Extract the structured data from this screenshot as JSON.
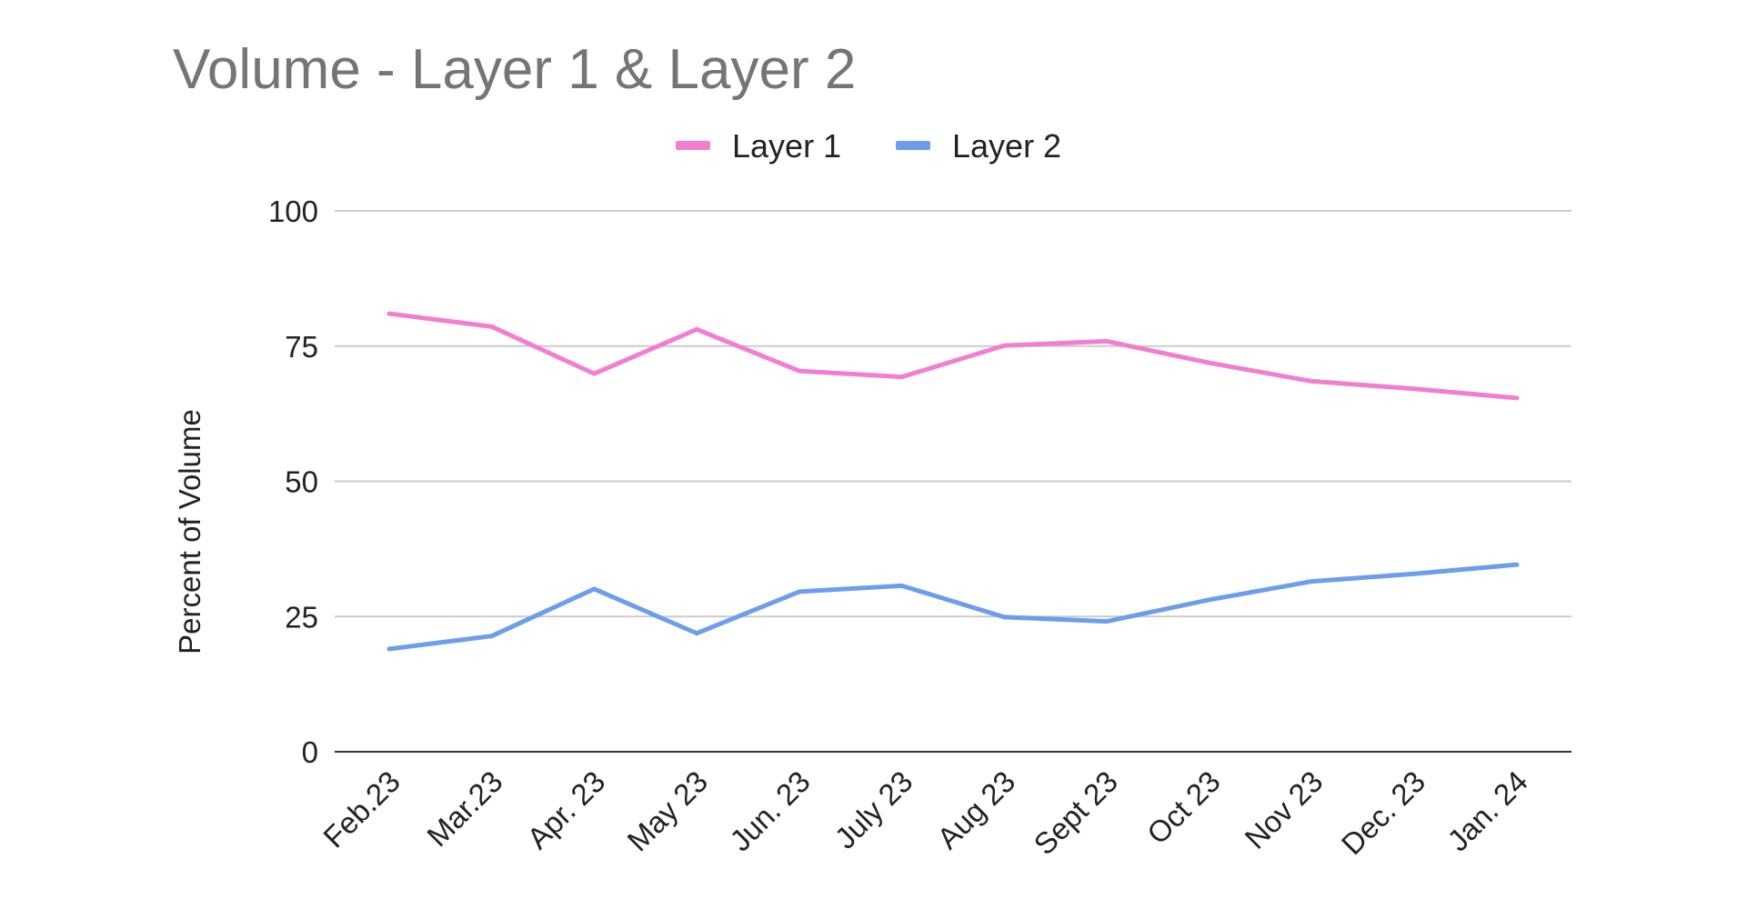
{
  "chart_data": {
    "type": "line",
    "title": "Volume - Layer 1 & Layer 2",
    "xlabel": "",
    "ylabel": "Percent of Volume",
    "categories": [
      "Feb.23",
      "Mar.23",
      "Apr. 23",
      "May 23",
      "Jun. 23",
      "July 23",
      "Aug 23",
      "Sept 23",
      "Oct 23",
      "Nov 23",
      "Dec. 23",
      "Jan. 24"
    ],
    "series": [
      {
        "name": "Layer 1",
        "color": "#f27ed0",
        "values": [
          81,
          78.6,
          69.9,
          78.1,
          70.4,
          69.3,
          75.1,
          75.9,
          71.9,
          68.5,
          67.1,
          65.4
        ]
      },
      {
        "name": "Layer 2",
        "color": "#6d9eeb",
        "values": [
          19,
          21.4,
          30.1,
          21.9,
          29.6,
          30.7,
          24.9,
          24.1,
          28.1,
          31.5,
          32.9,
          34.6
        ]
      }
    ],
    "ylim": [
      0,
      100
    ],
    "yticks": [
      0,
      25,
      50,
      75,
      100
    ],
    "grid": true,
    "legend_position": "top"
  }
}
